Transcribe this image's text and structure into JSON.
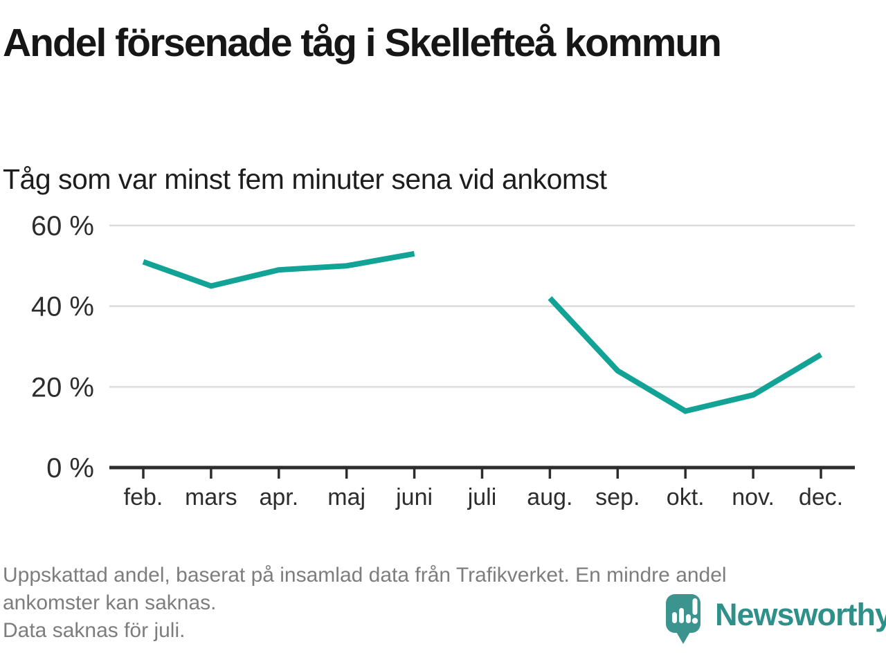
{
  "header": {
    "title": "Andel försenade tåg i Skellefteå kommun",
    "subtitle": "Tåg som var minst fem minuter sena vid ankomst"
  },
  "chart_data": {
    "type": "line",
    "title": "Andel försenade tåg i Skellefteå kommun",
    "subtitle": "Tåg som var minst fem minuter sena vid ankomst",
    "categories": [
      "feb.",
      "mars",
      "apr.",
      "maj",
      "juni",
      "juli",
      "aug.",
      "sep.",
      "okt.",
      "nov.",
      "dec."
    ],
    "values": [
      51,
      45,
      49,
      50,
      53,
      null,
      42,
      24,
      14,
      18,
      28
    ],
    "unit": "%",
    "ylim": [
      0,
      60
    ],
    "yticks": [
      0,
      20,
      40,
      60
    ],
    "ytick_labels": [
      "0 %",
      "20 %",
      "40 %",
      "60 %"
    ],
    "grid": "horizontal-only",
    "legend": "none",
    "missing_data": "juli",
    "line_color": "#12a296"
  },
  "colors": {
    "line": "#12a296",
    "grid": "#dcdcdc",
    "axis": "#2d2d2d",
    "axis_text": "#2d2d2d",
    "title_text": "#161616",
    "footnote_text": "#7d7d7d",
    "logo_teal": "#3b948e",
    "logo_text": "#2f9089"
  },
  "footer": {
    "lines": [
      "Uppskattad andel, baserat på insamlad data från Trafikverket. En mindre andel",
      "ankomster kan saknas.",
      "Data saknas för juli."
    ]
  },
  "logo": {
    "text": "Newsworthy",
    "icon": "newsworthy-pin-barchart-icon"
  }
}
